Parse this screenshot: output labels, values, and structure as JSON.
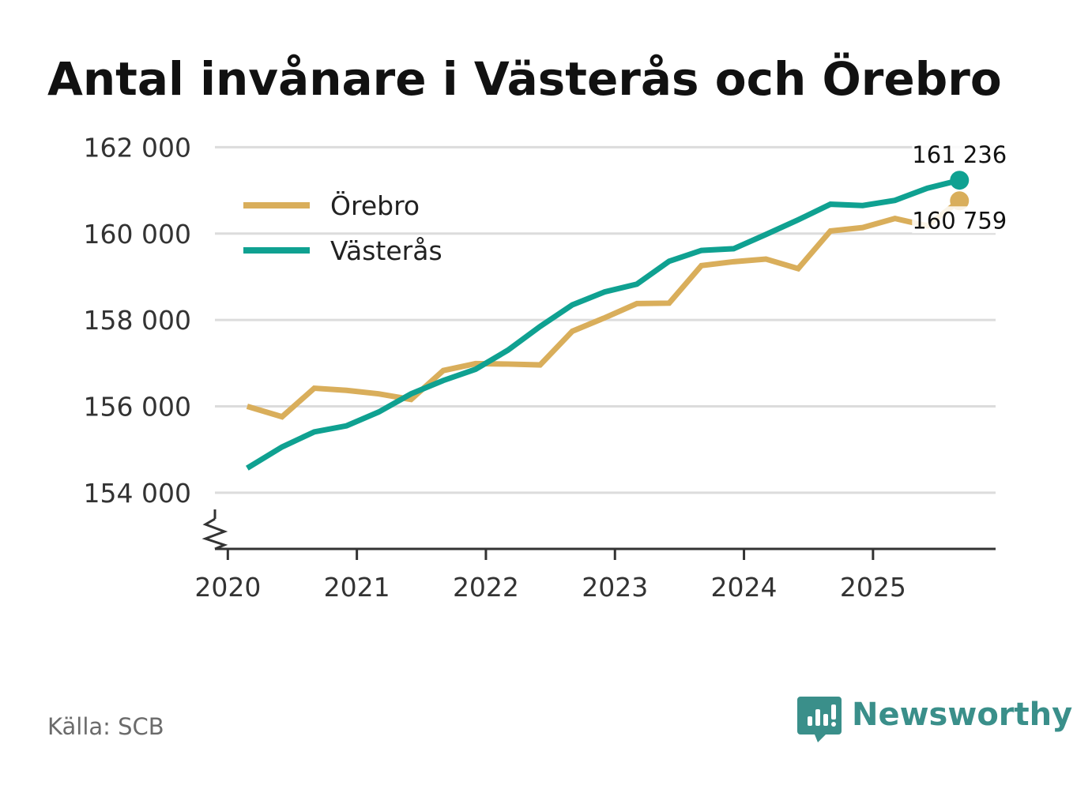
{
  "title": "Antal invånare i Västerås och Örebro",
  "source": "Källa: SCB",
  "brand": {
    "name": "Newsworthy",
    "icon": "newsworthy-logo-icon",
    "color": "#3a8f8a"
  },
  "colors": {
    "orebro": "#d9ae5b",
    "vasteras": "#0fa191"
  },
  "chart_data": {
    "type": "line",
    "title": "Antal invånare i Västerås och Örebro",
    "xlabel": "",
    "ylabel": "",
    "xlim": [
      2019.9,
      2025.95
    ],
    "ylim": [
      152700,
      162300
    ],
    "yticks": [
      154000,
      156000,
      158000,
      160000,
      162000
    ],
    "ytick_labels": [
      "154 000",
      "156 000",
      "158 000",
      "160 000",
      "162 000"
    ],
    "xticks": [
      2020,
      2021,
      2022,
      2023,
      2024,
      2025
    ],
    "xtick_labels": [
      "2020",
      "2021",
      "2022",
      "2023",
      "2024",
      "2025"
    ],
    "grid": true,
    "legend": "top-left",
    "axis_break": true,
    "series": [
      {
        "name": "Örebro",
        "color": "#d9ae5b",
        "x": [
          2020.15,
          2020.42,
          2020.67,
          2020.92,
          2021.17,
          2021.42,
          2021.67,
          2021.92,
          2022.17,
          2022.42,
          2022.67,
          2022.92,
          2023.17,
          2023.42,
          2023.67,
          2023.92,
          2024.17,
          2024.42,
          2024.67,
          2024.92,
          2025.17,
          2025.42,
          2025.67
        ],
        "values": [
          156000,
          155760,
          156420,
          156370,
          156290,
          156160,
          156830,
          156990,
          156980,
          156960,
          157740,
          158050,
          158380,
          158390,
          159260,
          159350,
          159410,
          159190,
          160060,
          160140,
          160350,
          160180,
          160759
        ]
      },
      {
        "name": "Västerås",
        "color": "#0fa191",
        "x": [
          2020.15,
          2020.42,
          2020.67,
          2020.92,
          2021.17,
          2021.42,
          2021.67,
          2021.92,
          2022.17,
          2022.42,
          2022.67,
          2022.92,
          2023.17,
          2023.42,
          2023.67,
          2023.92,
          2024.17,
          2024.42,
          2024.67,
          2024.92,
          2025.17,
          2025.42,
          2025.67
        ],
        "values": [
          154570,
          155060,
          155410,
          155550,
          155870,
          156290,
          156600,
          156860,
          157300,
          157850,
          158350,
          158650,
          158830,
          159360,
          159610,
          159650,
          159980,
          160320,
          160680,
          160650,
          160770,
          161050,
          161236
        ]
      }
    ],
    "end_labels": [
      {
        "series": "Västerås",
        "text": "161 236",
        "value": 161236
      },
      {
        "series": "Örebro",
        "text": "160 759",
        "value": 160759
      }
    ]
  }
}
